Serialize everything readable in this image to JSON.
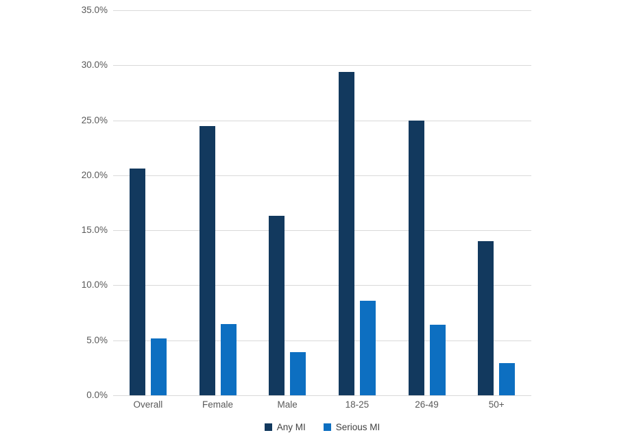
{
  "chart_data": {
    "type": "bar",
    "categories": [
      "Overall",
      "Female",
      "Male",
      "18-25",
      "26-49",
      "50+"
    ],
    "series": [
      {
        "name": "Any MI",
        "color": "#12395e",
        "values": [
          20.6,
          24.5,
          16.3,
          29.4,
          25.0,
          14.0
        ]
      },
      {
        "name": "Serious MI",
        "color": "#0d6fc1",
        "values": [
          5.2,
          6.5,
          3.9,
          8.6,
          6.4,
          2.9
        ]
      }
    ],
    "title": "",
    "xlabel": "",
    "ylabel": "",
    "ylim": [
      0,
      35
    ],
    "y_ticks": [
      {
        "value": 35,
        "label": "35.0%"
      },
      {
        "value": 30,
        "label": "30.0%"
      },
      {
        "value": 25,
        "label": "25.0%"
      },
      {
        "value": 20,
        "label": "20.0%"
      },
      {
        "value": 15,
        "label": "15.0%"
      },
      {
        "value": 10,
        "label": "10.0%"
      },
      {
        "value": 5,
        "label": "5.0%"
      },
      {
        "value": 0,
        "label": "0.0%"
      }
    ],
    "grid": true,
    "legend_position": "bottom",
    "colors": {
      "gridline": "#d9d9d9",
      "tick_label": "#595959",
      "legend_text": "#404040",
      "background": "#ffffff"
    }
  }
}
